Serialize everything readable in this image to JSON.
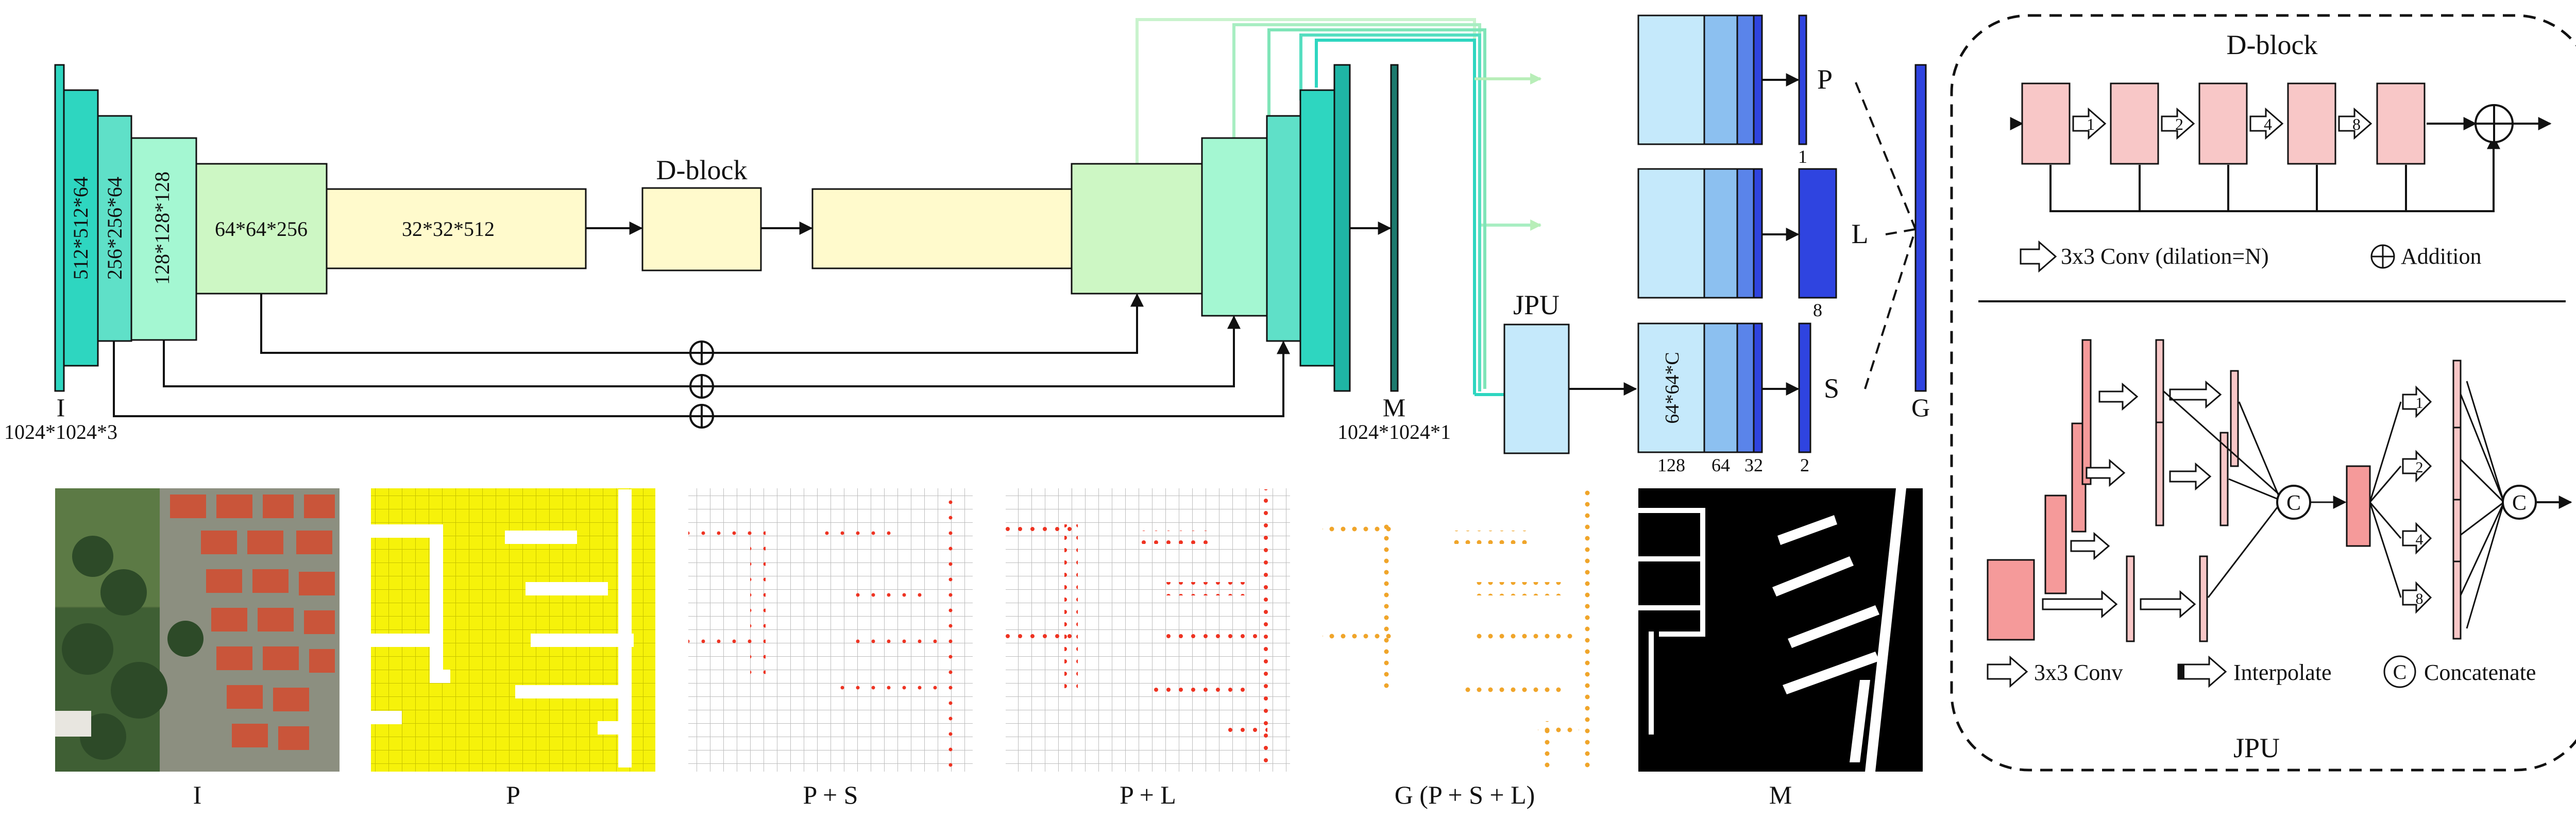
{
  "encoder": {
    "input_label": "I",
    "input_size": "1024*1024*3",
    "blocks": [
      "512*512*64",
      "256*256*64",
      "128*128*128",
      "64*64*256",
      "32*32*512"
    ],
    "dblock_label": "D-block",
    "addition_symbol": "⊕"
  },
  "decoder": {
    "output_label": "M",
    "output_size": "1024*1024*1",
    "jpu_label": "JPU"
  },
  "heads": {
    "point": {
      "label": "P",
      "channels": "1"
    },
    "line": {
      "label": "L",
      "channels": "8"
    },
    "segment": {
      "label": "S",
      "channels": "2",
      "block_label": "64*64*C",
      "widths": [
        "128",
        "64",
        "32"
      ]
    },
    "graph_label": "G"
  },
  "dblock_detail": {
    "title": "D-block",
    "dilations": [
      "1",
      "2",
      "4",
      "8"
    ],
    "legend_conv": "3x3 Conv (dilation=N)",
    "legend_add": "Addition"
  },
  "jpu_detail": {
    "title": "JPU",
    "dilations": [
      "1",
      "2",
      "4",
      "8"
    ],
    "concat_symbol": "C",
    "legend_conv": "3x3 Conv",
    "legend_interp": "Interpolate",
    "legend_concat": "Concatenate"
  },
  "panels": [
    "I",
    "P",
    "P + S",
    "P + L",
    "G (P + S + L)",
    "M"
  ],
  "colors": {
    "teal": "#2ed6c0",
    "mint": "#a4f7d2",
    "pale_green": "#cdf7c4",
    "cream": "#fffacc",
    "light_blue": "#c5e9fb",
    "mid_blue": "#6fa8f0",
    "royal_blue": "#2f44e0",
    "pink": "#f8c7c7",
    "salmon": "#f59a9a",
    "yellow": "#f6f20a",
    "red_dot": "#ee3322",
    "orange_dot": "#f0a52a"
  }
}
